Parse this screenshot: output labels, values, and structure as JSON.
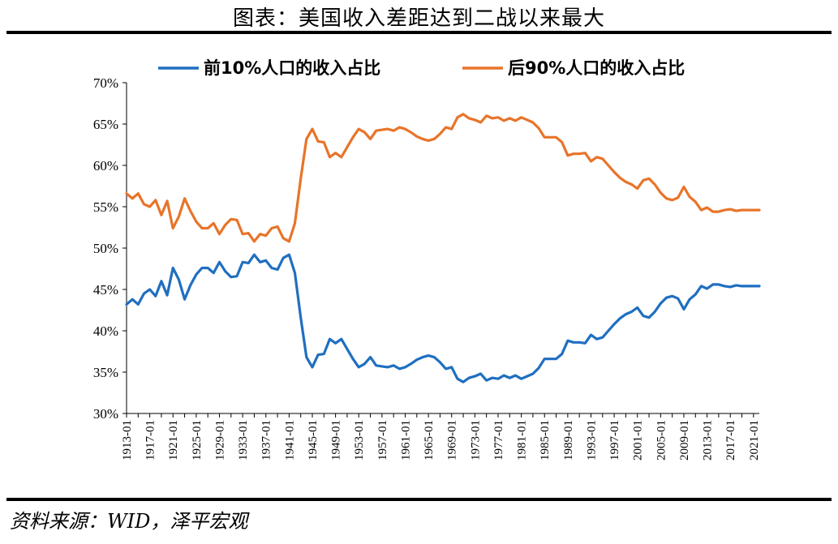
{
  "title": "图表：美国收入差距达到二战以来最大",
  "source": "资料来源：WID，泽平宏观",
  "chart_data": {
    "type": "line",
    "title": "图表：美国收入差距达到二战以来最大",
    "xlabel": "",
    "ylabel": "",
    "ylim": [
      30,
      70
    ],
    "y_ticks": [
      "30%",
      "35%",
      "40%",
      "45%",
      "50%",
      "55%",
      "60%",
      "65%",
      "70%"
    ],
    "x_tick_labels": [
      "1913-01",
      "1917-01",
      "1921-01",
      "1925-01",
      "1929-01",
      "1933-01",
      "1937-01",
      "1941-01",
      "1945-01",
      "1949-01",
      "1953-01",
      "1957-01",
      "1961-01",
      "1965-01",
      "1969-01",
      "1973-01",
      "1977-01",
      "1981-01",
      "1985-01",
      "1989-01",
      "1993-01",
      "1997-01",
      "2001-01",
      "2005-01",
      "2009-01",
      "2013-01",
      "2017-01",
      "2021-01"
    ],
    "x_start": 1913,
    "x_end": 2022,
    "legend_position": "top",
    "series": [
      {
        "name": "前10%人口的收入占比",
        "color": "#1f6fc0",
        "x": [
          1913,
          1914,
          1915,
          1916,
          1917,
          1918,
          1919,
          1920,
          1921,
          1922,
          1923,
          1924,
          1925,
          1926,
          1927,
          1928,
          1929,
          1930,
          1931,
          1932,
          1933,
          1934,
          1935,
          1936,
          1937,
          1938,
          1939,
          1940,
          1941,
          1942,
          1943,
          1944,
          1945,
          1946,
          1947,
          1948,
          1949,
          1950,
          1951,
          1952,
          1953,
          1954,
          1955,
          1956,
          1957,
          1958,
          1959,
          1960,
          1961,
          1962,
          1963,
          1964,
          1965,
          1966,
          1967,
          1968,
          1969,
          1970,
          1971,
          1972,
          1973,
          1974,
          1975,
          1976,
          1977,
          1978,
          1979,
          1980,
          1981,
          1982,
          1983,
          1984,
          1985,
          1986,
          1987,
          1988,
          1989,
          1990,
          1991,
          1992,
          1993,
          1994,
          1995,
          1996,
          1997,
          1998,
          1999,
          2000,
          2001,
          2002,
          2003,
          2004,
          2005,
          2006,
          2007,
          2008,
          2009,
          2010,
          2011,
          2012,
          2013,
          2014,
          2015,
          2016,
          2017,
          2018,
          2019,
          2020,
          2021,
          2022
        ],
        "values": [
          43.2,
          43.8,
          43.2,
          44.5,
          45.0,
          44.2,
          46.0,
          44.3,
          47.6,
          46.2,
          43.8,
          45.5,
          46.8,
          47.6,
          47.6,
          47.0,
          48.3,
          47.2,
          46.5,
          46.6,
          48.3,
          48.2,
          49.2,
          48.3,
          48.5,
          47.6,
          47.4,
          48.8,
          49.2,
          47.0,
          41.6,
          36.8,
          35.6,
          37.1,
          37.2,
          39.0,
          38.5,
          39.0,
          37.8,
          36.6,
          35.6,
          36.0,
          36.8,
          35.8,
          35.7,
          35.6,
          35.8,
          35.4,
          35.6,
          36.0,
          36.5,
          36.8,
          37.0,
          36.8,
          36.2,
          35.4,
          35.6,
          34.2,
          33.8,
          34.3,
          34.5,
          34.8,
          34.0,
          34.3,
          34.2,
          34.6,
          34.3,
          34.6,
          34.2,
          34.5,
          34.8,
          35.5,
          36.6,
          36.6,
          36.6,
          37.2,
          38.8,
          38.6,
          38.6,
          38.5,
          39.5,
          39.0,
          39.2,
          40.0,
          40.8,
          41.5,
          42.0,
          42.3,
          42.8,
          41.8,
          41.6,
          42.3,
          43.3,
          44.0,
          44.2,
          43.9,
          42.6,
          43.8,
          44.4,
          45.4,
          45.1,
          45.6,
          45.6,
          45.4,
          45.3,
          45.5,
          45.4,
          45.4,
          45.4,
          45.4
        ]
      },
      {
        "name": "后90%人口的收入占比",
        "color": "#e8742a",
        "x": [
          1913,
          1914,
          1915,
          1916,
          1917,
          1918,
          1919,
          1920,
          1921,
          1922,
          1923,
          1924,
          1925,
          1926,
          1927,
          1928,
          1929,
          1930,
          1931,
          1932,
          1933,
          1934,
          1935,
          1936,
          1937,
          1938,
          1939,
          1940,
          1941,
          1942,
          1943,
          1944,
          1945,
          1946,
          1947,
          1948,
          1949,
          1950,
          1951,
          1952,
          1953,
          1954,
          1955,
          1956,
          1957,
          1958,
          1959,
          1960,
          1961,
          1962,
          1963,
          1964,
          1965,
          1966,
          1967,
          1968,
          1969,
          1970,
          1971,
          1972,
          1973,
          1974,
          1975,
          1976,
          1977,
          1978,
          1979,
          1980,
          1981,
          1982,
          1983,
          1984,
          1985,
          1986,
          1987,
          1988,
          1989,
          1990,
          1991,
          1992,
          1993,
          1994,
          1995,
          1996,
          1997,
          1998,
          1999,
          2000,
          2001,
          2002,
          2003,
          2004,
          2005,
          2006,
          2007,
          2008,
          2009,
          2010,
          2011,
          2012,
          2013,
          2014,
          2015,
          2016,
          2017,
          2018,
          2019,
          2020,
          2021,
          2022
        ],
        "values": [
          56.6,
          56.0,
          56.6,
          55.3,
          55.0,
          55.8,
          54.0,
          55.7,
          52.4,
          53.8,
          56.0,
          54.5,
          53.2,
          52.4,
          52.4,
          53.0,
          51.7,
          52.8,
          53.5,
          53.4,
          51.7,
          51.8,
          50.8,
          51.7,
          51.5,
          52.4,
          52.6,
          51.2,
          50.8,
          53.0,
          58.4,
          63.2,
          64.4,
          62.9,
          62.8,
          61.0,
          61.5,
          61.0,
          62.2,
          63.4,
          64.4,
          64.0,
          63.2,
          64.2,
          64.3,
          64.4,
          64.2,
          64.6,
          64.4,
          64.0,
          63.5,
          63.2,
          63.0,
          63.2,
          63.8,
          64.6,
          64.4,
          65.8,
          66.2,
          65.7,
          65.5,
          65.2,
          66.0,
          65.7,
          65.8,
          65.4,
          65.7,
          65.4,
          65.8,
          65.5,
          65.2,
          64.5,
          63.4,
          63.4,
          63.4,
          62.8,
          61.2,
          61.4,
          61.4,
          61.5,
          60.5,
          61.0,
          60.8,
          60.0,
          59.2,
          58.5,
          58.0,
          57.7,
          57.2,
          58.2,
          58.4,
          57.7,
          56.7,
          56.0,
          55.8,
          56.1,
          57.4,
          56.2,
          55.6,
          54.6,
          54.9,
          54.4,
          54.4,
          54.6,
          54.7,
          54.5,
          54.6,
          54.6,
          54.6,
          54.6
        ]
      }
    ]
  }
}
